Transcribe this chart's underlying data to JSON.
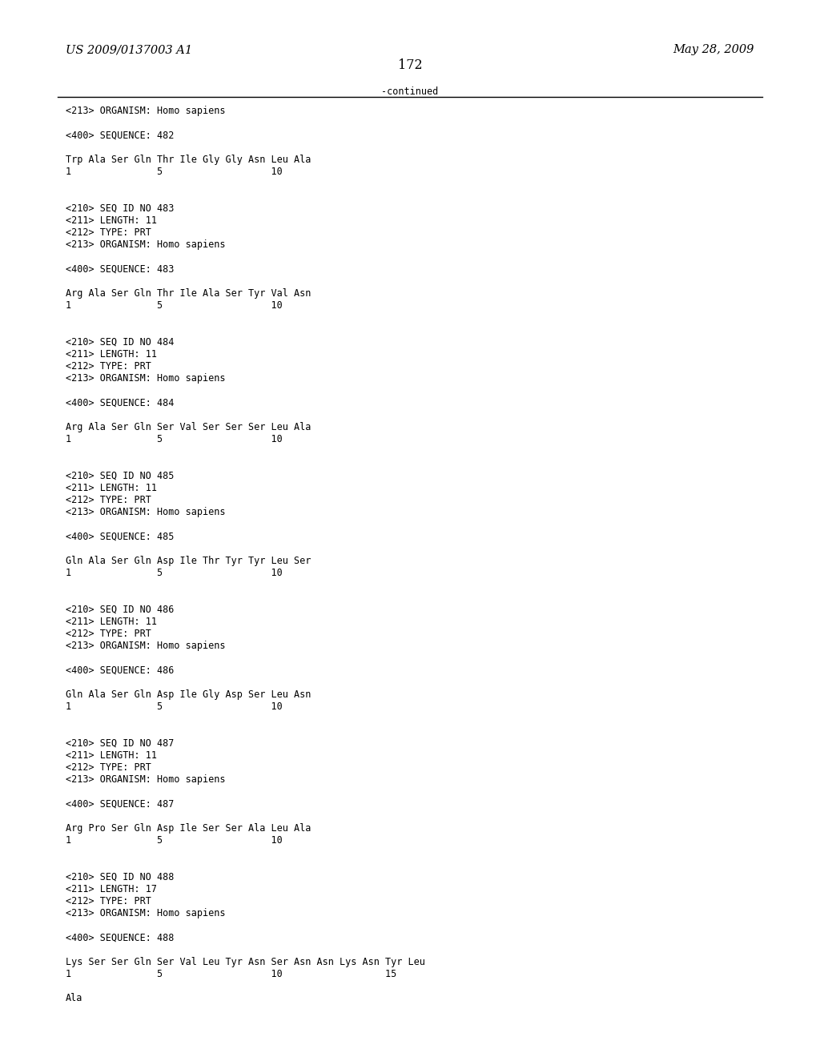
{
  "header_left": "US 2009/0137003 A1",
  "header_right": "May 28, 2009",
  "page_number": "172",
  "continued_label": "-continued",
  "background_color": "#ffffff",
  "text_color": "#000000",
  "font_size_header": 10.5,
  "font_size_body": 8.5,
  "body_lines": [
    "<213> ORGANISM: Homo sapiens",
    "",
    "<400> SEQUENCE: 482",
    "",
    "Trp Ala Ser Gln Thr Ile Gly Gly Asn Leu Ala",
    "1               5                   10",
    "",
    "",
    "<210> SEQ ID NO 483",
    "<211> LENGTH: 11",
    "<212> TYPE: PRT",
    "<213> ORGANISM: Homo sapiens",
    "",
    "<400> SEQUENCE: 483",
    "",
    "Arg Ala Ser Gln Thr Ile Ala Ser Tyr Val Asn",
    "1               5                   10",
    "",
    "",
    "<210> SEQ ID NO 484",
    "<211> LENGTH: 11",
    "<212> TYPE: PRT",
    "<213> ORGANISM: Homo sapiens",
    "",
    "<400> SEQUENCE: 484",
    "",
    "Arg Ala Ser Gln Ser Val Ser Ser Ser Leu Ala",
    "1               5                   10",
    "",
    "",
    "<210> SEQ ID NO 485",
    "<211> LENGTH: 11",
    "<212> TYPE: PRT",
    "<213> ORGANISM: Homo sapiens",
    "",
    "<400> SEQUENCE: 485",
    "",
    "Gln Ala Ser Gln Asp Ile Thr Tyr Tyr Leu Ser",
    "1               5                   10",
    "",
    "",
    "<210> SEQ ID NO 486",
    "<211> LENGTH: 11",
    "<212> TYPE: PRT",
    "<213> ORGANISM: Homo sapiens",
    "",
    "<400> SEQUENCE: 486",
    "",
    "Gln Ala Ser Gln Asp Ile Gly Asp Ser Leu Asn",
    "1               5                   10",
    "",
    "",
    "<210> SEQ ID NO 487",
    "<211> LENGTH: 11",
    "<212> TYPE: PRT",
    "<213> ORGANISM: Homo sapiens",
    "",
    "<400> SEQUENCE: 487",
    "",
    "Arg Pro Ser Gln Asp Ile Ser Ser Ala Leu Ala",
    "1               5                   10",
    "",
    "",
    "<210> SEQ ID NO 488",
    "<211> LENGTH: 17",
    "<212> TYPE: PRT",
    "<213> ORGANISM: Homo sapiens",
    "",
    "<400> SEQUENCE: 488",
    "",
    "Lys Ser Ser Gln Ser Val Leu Tyr Asn Ser Asn Asn Lys Asn Tyr Leu",
    "1               5                   10                  15",
    "",
    "Ala"
  ]
}
